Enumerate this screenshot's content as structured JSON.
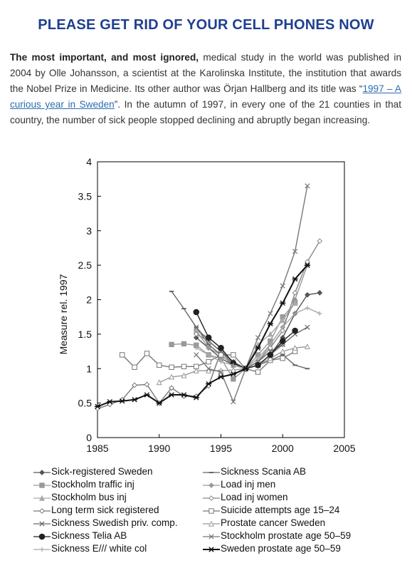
{
  "headline": "PLEASE GET RID OF YOUR CELL PHONES NOW",
  "intro": {
    "lead_bold": "The most important, and most ignored,",
    "text_1": " medical study in the world was published in 2004 by Olle Johansson, a scientist at the Karolinska Institute, the institution that awards the Nobel Prize in Medicine. Its other author was Örjan Hallberg and its title was “",
    "link_text": "1997 – A curious year in Sweden",
    "text_2": "”. In the autumn of 1997, in every one of the 21 counties in that country, the number of sick people stopped declining and abruptly began increasing."
  },
  "chart_data": {
    "type": "line",
    "title": "",
    "xlabel": "",
    "ylabel": "Measure rel. 1997",
    "xlim": [
      1985,
      2005
    ],
    "ylim": [
      0,
      4
    ],
    "xticks": [
      "1985",
      "1990",
      "1995",
      "2000",
      "2005"
    ],
    "yticks": [
      "0",
      "0.5",
      "1",
      "1.5",
      "2",
      "2.5",
      "3",
      "3.5",
      "4"
    ],
    "grid": false,
    "legend_position": "bottom",
    "series": [
      {
        "name": "Sick-registered Sweden",
        "color": "#555555",
        "marker": "diamond",
        "x": [
          1993,
          1994,
          1995,
          1996,
          1997,
          1998,
          1999,
          2000,
          2001,
          2002,
          2003
        ],
        "y": [
          1.45,
          1.3,
          1.15,
          1.05,
          1.0,
          1.05,
          1.2,
          1.45,
          1.8,
          2.07,
          2.1
        ]
      },
      {
        "name": "Sickness Scania AB",
        "color": "#666666",
        "marker": "dash",
        "x": [
          1991,
          1992,
          1993,
          1994,
          1995,
          1996,
          1997,
          1998,
          1999,
          2000,
          2001,
          2002
        ],
        "y": [
          2.12,
          1.87,
          1.6,
          1.35,
          1.2,
          1.05,
          1.0,
          1.05,
          1.12,
          1.2,
          1.05,
          1.0
        ]
      },
      {
        "name": "Stockholm traffic inj",
        "color": "#999999",
        "marker": "square",
        "x": [
          1991,
          1992,
          1993,
          1994,
          1995,
          1996,
          1997,
          1998,
          1999,
          2000,
          2001
        ],
        "y": [
          1.35,
          1.36,
          1.34,
          1.2,
          1.15,
          0.85,
          1.0,
          1.2,
          1.4,
          1.75,
          1.95
        ]
      },
      {
        "name": "Load inj men",
        "color": "#999999",
        "marker": "diamond",
        "x": [
          1993,
          1994,
          1995,
          1996,
          1997,
          1998,
          1999,
          2000,
          2001,
          2002
        ],
        "y": [
          1.55,
          1.3,
          1.2,
          1.05,
          1.0,
          1.1,
          1.35,
          1.6,
          2.0,
          2.5
        ]
      },
      {
        "name": "Stockholm bus inj",
        "color": "#aaaaaa",
        "marker": "triangle",
        "x": [
          1993,
          1994,
          1995,
          1996,
          1997,
          1998,
          1999,
          2000,
          2001
        ],
        "y": [
          1.55,
          1.45,
          1.3,
          1.05,
          1.0,
          1.35,
          1.5,
          1.7,
          1.95
        ]
      },
      {
        "name": "Load inj women",
        "color": "#888888",
        "marker": "diamond-open",
        "x": [
          1993,
          1994,
          1995,
          1996,
          1997,
          1998,
          1999,
          2000,
          2001,
          2002,
          2003
        ],
        "y": [
          1.5,
          1.4,
          1.25,
          1.1,
          1.0,
          1.1,
          1.3,
          1.55,
          2.1,
          2.55,
          2.85
        ]
      },
      {
        "name": "Long term sick registered",
        "color": "#777777",
        "marker": "diamond-open",
        "x": [
          1985,
          1986,
          1987,
          1988,
          1989,
          1990,
          1991,
          1992,
          1993,
          1994,
          1995,
          1996,
          1997,
          1998,
          1999,
          2000
        ],
        "y": [
          0.42,
          0.48,
          0.55,
          0.76,
          0.77,
          0.5,
          0.72,
          0.6,
          0.6,
          0.75,
          1.25,
          1.05,
          1.0,
          1.05,
          1.2,
          1.35
        ]
      },
      {
        "name": "Suicide attempts age 15–24",
        "color": "#777777",
        "marker": "square-open",
        "x": [
          1987,
          1988,
          1989,
          1990,
          1991,
          1992,
          1993,
          1994,
          1995,
          1996,
          1997,
          1998,
          1999,
          2000,
          2001
        ],
        "y": [
          1.2,
          1.02,
          1.22,
          1.05,
          1.02,
          1.03,
          1.03,
          1.1,
          1.2,
          1.2,
          1.0,
          0.95,
          1.12,
          1.15,
          1.25
        ]
      },
      {
        "name": "Sickness Swedish priv. comp.",
        "color": "#666666",
        "marker": "x",
        "x": [
          1993,
          1994,
          1995,
          1996,
          1997,
          1998,
          1999,
          2000,
          2001,
          2002
        ],
        "y": [
          1.6,
          1.4,
          1.25,
          1.1,
          1.0,
          1.1,
          1.25,
          1.35,
          1.5,
          1.6
        ]
      },
      {
        "name": "Prostate cancer Sweden",
        "color": "#999999",
        "marker": "triangle-open",
        "x": [
          1990,
          1991,
          1992,
          1993,
          1994,
          1995,
          1996,
          1997,
          1998,
          1999,
          2000,
          2001,
          2002
        ],
        "y": [
          0.8,
          0.88,
          0.9,
          0.97,
          0.97,
          0.97,
          0.98,
          1.0,
          1.05,
          1.15,
          1.25,
          1.3,
          1.32
        ]
      },
      {
        "name": "Sickness Telia AB",
        "color": "#222222",
        "marker": "circle",
        "x": [
          1993,
          1994,
          1995,
          1996,
          1997,
          1998,
          1999,
          2000,
          2001
        ],
        "y": [
          1.82,
          1.45,
          1.3,
          1.08,
          1.0,
          1.05,
          1.2,
          1.4,
          1.55
        ]
      },
      {
        "name": "Stockholm prostate age 50–59",
        "color": "#777777",
        "marker": "x",
        "x": [
          1993,
          1994,
          1995,
          1996,
          1997,
          1998,
          1999,
          2000,
          2001,
          2002
        ],
        "y": [
          1.2,
          1.0,
          0.95,
          0.52,
          1.0,
          1.45,
          1.8,
          2.2,
          2.7,
          3.65
        ]
      },
      {
        "name": "Sickness E/// white col",
        "color": "#aaaaaa",
        "marker": "plus",
        "x": [
          1993,
          1994,
          1995,
          1996,
          1997,
          1998,
          1999,
          2000,
          2001,
          2002,
          2003
        ],
        "y": [
          1.3,
          1.2,
          1.1,
          1.05,
          1.0,
          1.15,
          1.35,
          1.6,
          1.8,
          1.88,
          1.8
        ]
      },
      {
        "name": "Sweden prostate age 50–59",
        "color": "#111111",
        "marker": "star",
        "x": [
          1985,
          1986,
          1987,
          1988,
          1989,
          1990,
          1991,
          1992,
          1993,
          1994,
          1995,
          1996,
          1997,
          1998,
          1999,
          2000,
          2001,
          2002
        ],
        "y": [
          0.45,
          0.52,
          0.53,
          0.55,
          0.62,
          0.5,
          0.62,
          0.62,
          0.58,
          0.78,
          0.88,
          0.92,
          1.0,
          1.3,
          1.65,
          1.95,
          2.3,
          2.5
        ]
      }
    ]
  }
}
